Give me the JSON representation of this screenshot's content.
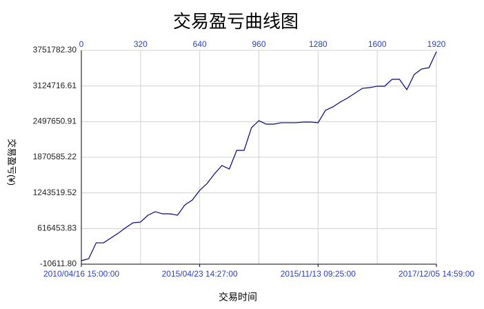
{
  "chart_data": {
    "type": "line",
    "title": "交易盈亏曲线图",
    "x_label": "交易时间",
    "y_label": "交易盈亏(¥)",
    "x": [
      0,
      40,
      80,
      120,
      160,
      200,
      240,
      280,
      320,
      360,
      400,
      440,
      480,
      520,
      560,
      600,
      640,
      680,
      720,
      760,
      800,
      840,
      880,
      920,
      960,
      1000,
      1040,
      1080,
      1120,
      1160,
      1200,
      1240,
      1280,
      1320,
      1360,
      1400,
      1440,
      1480,
      1520,
      1560,
      1600,
      1640,
      1680,
      1720,
      1760,
      1800,
      1840,
      1880,
      1920
    ],
    "series": [
      {
        "color": "#000080",
        "values": [
          50000,
          86000,
          365000,
          365000,
          450000,
          535000,
          633000,
          718000,
          730000,
          851000,
          912000,
          875000,
          875000,
          851000,
          1033000,
          1118000,
          1288000,
          1409000,
          1579000,
          1725000,
          1664000,
          1992000,
          1992000,
          2392000,
          2514000,
          2453000,
          2453000,
          2478000,
          2478000,
          2478000,
          2490000,
          2490000,
          2478000,
          2696000,
          2757000,
          2842000,
          2914000,
          2999000,
          3084000,
          3096000,
          3121000,
          3121000,
          3242000,
          3242000,
          3060000,
          3327000,
          3424000,
          3448000,
          3727000
        ]
      }
    ],
    "xlim": [
      0,
      1920
    ],
    "xticks": [
      0,
      320,
      640,
      960,
      1280,
      1600,
      1920
    ],
    "x2ticks": [
      {
        "value": 0,
        "label": "2010/04/16 15:00:00"
      },
      {
        "value": 640,
        "label": "2015/04/23 14:27:00"
      },
      {
        "value": 1280,
        "label": "2015/11/13 09:25:00"
      },
      {
        "value": 1920,
        "label": "2017/12/05 14:59:00"
      }
    ],
    "ylim": [
      -10611.8,
      3751782.3
    ],
    "yticks": [
      {
        "value": -10611.8,
        "label": "-10611.80"
      },
      616453.83,
      1243519.52,
      1870585.22,
      2497650.91,
      3124716.61,
      {
        "value": 3751782.3,
        "label": "3751782.30"
      }
    ],
    "grid": true
  }
}
